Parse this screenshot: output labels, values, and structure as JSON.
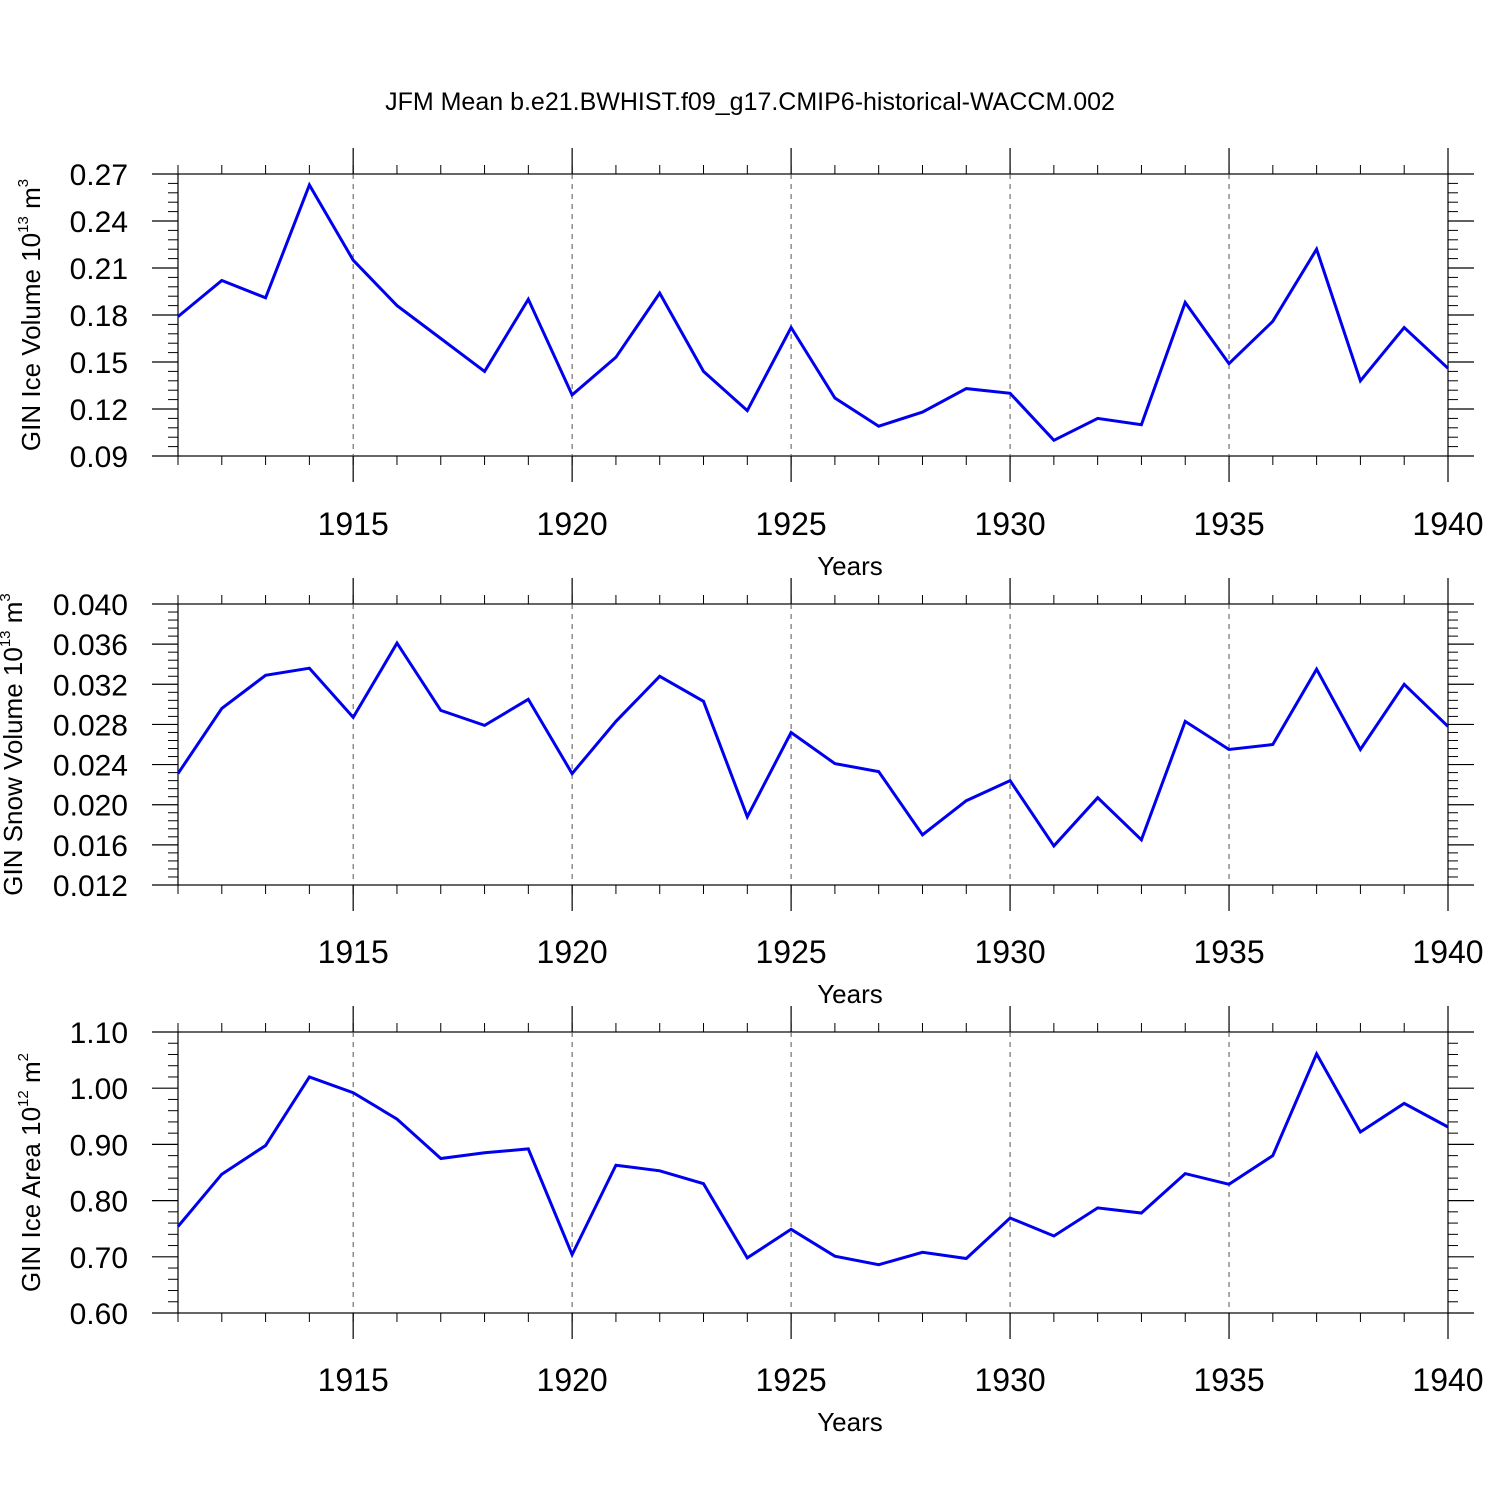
{
  "title": "JFM Mean b.e21.BWHIST.f09_g17.CMIP6-historical-WACCM.002",
  "colors": {
    "line": "#0000ee",
    "axis": "#000000",
    "grid": "#555555"
  },
  "chart_data": [
    {
      "type": "line",
      "xlabel": "Years",
      "ylabel_text": "GIN Ice Volume 10",
      "ylabel_exp": "13",
      "ylabel_unit": " m",
      "ylabel_unit_exp": "3",
      "xlim": [
        1911,
        1940
      ],
      "ylim": [
        0.09,
        0.27
      ],
      "xticks": [
        1915,
        1920,
        1925,
        1930,
        1935,
        1940
      ],
      "yticks": [
        0.09,
        0.12,
        0.15,
        0.18,
        0.21,
        0.24,
        0.27
      ],
      "ytick_labels": [
        "0.09",
        "0.12",
        "0.15",
        "0.18",
        "0.21",
        "0.24",
        "0.27"
      ],
      "grid": "vertical dashed at major x ticks",
      "series": [
        {
          "x": [
            1911,
            1912,
            1913,
            1914,
            1915,
            1916,
            1917,
            1918,
            1919,
            1920,
            1921,
            1922,
            1923,
            1924,
            1925,
            1926,
            1927,
            1928,
            1929,
            1930,
            1931,
            1932,
            1933,
            1934,
            1935,
            1936,
            1937,
            1938,
            1939,
            1940
          ],
          "values": [
            0.179,
            0.202,
            0.191,
            0.263,
            0.215,
            0.186,
            0.165,
            0.144,
            0.19,
            0.129,
            0.153,
            0.194,
            0.144,
            0.119,
            0.172,
            0.127,
            0.109,
            0.118,
            0.133,
            0.13,
            0.1,
            0.114,
            0.11,
            0.188,
            0.149,
            0.176,
            0.222,
            0.138,
            0.172,
            0.146
          ]
        }
      ]
    },
    {
      "type": "line",
      "xlabel": "Years",
      "ylabel_text": "GIN Snow Volume 10",
      "ylabel_exp": "13",
      "ylabel_unit": " m",
      "ylabel_unit_exp": "3",
      "xlim": [
        1911,
        1940
      ],
      "ylim": [
        0.012,
        0.04
      ],
      "xticks": [
        1915,
        1920,
        1925,
        1930,
        1935,
        1940
      ],
      "yticks": [
        0.012,
        0.016,
        0.02,
        0.024,
        0.028,
        0.032,
        0.036,
        0.04
      ],
      "ytick_labels": [
        "0.012",
        "0.016",
        "0.020",
        "0.024",
        "0.028",
        "0.032",
        "0.036",
        "0.040"
      ],
      "grid": "vertical dashed at major x ticks",
      "series": [
        {
          "x": [
            1911,
            1912,
            1913,
            1914,
            1915,
            1916,
            1917,
            1918,
            1919,
            1920,
            1921,
            1922,
            1923,
            1924,
            1925,
            1926,
            1927,
            1928,
            1929,
            1930,
            1931,
            1932,
            1933,
            1934,
            1935,
            1936,
            1937,
            1938,
            1939,
            1940
          ],
          "values": [
            0.0231,
            0.0296,
            0.0329,
            0.0336,
            0.0287,
            0.0361,
            0.0294,
            0.0279,
            0.0305,
            0.0231,
            0.0283,
            0.0328,
            0.0303,
            0.0188,
            0.0272,
            0.0241,
            0.0233,
            0.017,
            0.0204,
            0.0224,
            0.0159,
            0.0207,
            0.0165,
            0.0283,
            0.0255,
            0.026,
            0.0335,
            0.0255,
            0.032,
            0.0278
          ]
        }
      ]
    },
    {
      "type": "line",
      "xlabel": "Years",
      "ylabel_text": "GIN Ice Area 10",
      "ylabel_exp": "12",
      "ylabel_unit": " m",
      "ylabel_unit_exp": "2",
      "xlim": [
        1911,
        1940
      ],
      "ylim": [
        0.6,
        1.1
      ],
      "xticks": [
        1915,
        1920,
        1925,
        1930,
        1935,
        1940
      ],
      "yticks": [
        0.6,
        0.7,
        0.8,
        0.9,
        1.0,
        1.1
      ],
      "ytick_labels": [
        "0.60",
        "0.70",
        "0.80",
        "0.90",
        "1.00",
        "1.10"
      ],
      "grid": "vertical dashed at major x ticks",
      "series": [
        {
          "x": [
            1911,
            1912,
            1913,
            1914,
            1915,
            1916,
            1917,
            1918,
            1919,
            1920,
            1921,
            1922,
            1923,
            1924,
            1925,
            1926,
            1927,
            1928,
            1929,
            1930,
            1931,
            1932,
            1933,
            1934,
            1935,
            1936,
            1937,
            1938,
            1939,
            1940
          ],
          "values": [
            0.754,
            0.847,
            0.898,
            1.02,
            0.992,
            0.945,
            0.875,
            0.885,
            0.892,
            0.704,
            0.863,
            0.853,
            0.83,
            0.698,
            0.749,
            0.701,
            0.686,
            0.708,
            0.697,
            0.769,
            0.737,
            0.787,
            0.778,
            0.848,
            0.829,
            0.88,
            1.061,
            0.922,
            0.973,
            0.931
          ]
        }
      ]
    }
  ]
}
